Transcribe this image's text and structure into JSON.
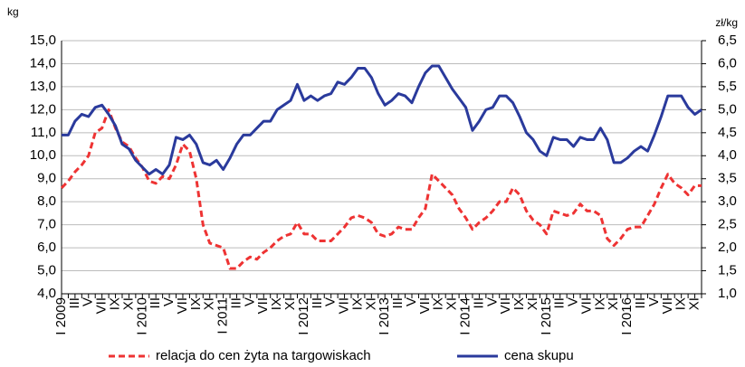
{
  "chart_data": {
    "type": "line",
    "y_label": "kg",
    "y2_label": "zł/kg",
    "categories": [
      "I 2009",
      null,
      "III",
      null,
      "V",
      null,
      "VII",
      null,
      "IX",
      null,
      "XI",
      null,
      "I 2010",
      null,
      "III",
      null,
      "V",
      null,
      "VII",
      null,
      "IX",
      null,
      "XI",
      null,
      "I 2011",
      null,
      "III",
      null,
      "V",
      null,
      "VII",
      null,
      "IX",
      null,
      "XI",
      null,
      "I 2012",
      null,
      "III",
      null,
      "V",
      null,
      "VII",
      null,
      "IX",
      null,
      "XI",
      null,
      "I 2013",
      null,
      "III",
      null,
      "V",
      null,
      "VII",
      null,
      "IX",
      null,
      "XI",
      null,
      "I 2014",
      null,
      "III",
      null,
      "V",
      null,
      "VII",
      null,
      "IX",
      null,
      "XI",
      null,
      "I 2015",
      null,
      "III",
      null,
      "V",
      null,
      "VII",
      null,
      "IX",
      null,
      "XI",
      null,
      "I 2016",
      null,
      "III",
      null,
      "V",
      null,
      "VII",
      null,
      "IX",
      null,
      "XI",
      null
    ],
    "series": [
      {
        "name": "relacja do cen żyta na targowiskach",
        "color": "#ee3333",
        "dashed": true,
        "values": [
          8.6,
          8.9,
          9.3,
          9.6,
          10.0,
          11.0,
          11.2,
          12.0,
          11.2,
          10.6,
          10.4,
          9.9,
          9.5,
          8.9,
          8.8,
          9.1,
          9.0,
          9.6,
          10.5,
          10.2,
          9.0,
          7.0,
          6.2,
          6.1,
          6.0,
          5.1,
          5.1,
          5.4,
          5.6,
          5.5,
          5.8,
          6.0,
          6.3,
          6.5,
          6.6,
          7.1,
          6.6,
          6.6,
          6.3,
          6.3,
          6.3,
          6.6,
          6.9,
          7.3,
          7.4,
          7.3,
          7.1,
          6.6,
          6.5,
          6.6,
          6.9,
          6.8,
          6.8,
          7.3,
          7.7,
          9.2,
          8.9,
          8.6,
          8.3,
          7.7,
          7.3,
          6.8,
          7.1,
          7.3,
          7.6,
          8.0,
          8.0,
          8.6,
          8.3,
          7.6,
          7.2,
          7.0,
          6.6,
          7.6,
          7.5,
          7.4,
          7.5,
          7.9,
          7.6,
          7.6,
          7.4,
          6.4,
          6.1,
          6.4,
          6.8,
          6.9,
          6.9,
          7.4,
          7.9,
          8.6,
          9.2,
          8.8,
          8.6,
          8.3,
          8.7,
          8.7
        ]
      },
      {
        "name": "cena skupu",
        "color": "#2a3a9c",
        "axis": "y2",
        "values": [
          4.45,
          4.45,
          4.75,
          4.9,
          4.85,
          5.05,
          5.1,
          4.9,
          4.65,
          4.25,
          4.15,
          3.9,
          3.75,
          3.6,
          3.7,
          3.6,
          3.8,
          4.4,
          4.35,
          4.45,
          4.25,
          3.85,
          3.8,
          3.9,
          3.7,
          3.95,
          4.25,
          4.45,
          4.45,
          4.6,
          4.75,
          4.75,
          5.0,
          5.1,
          5.2,
          5.55,
          5.2,
          5.3,
          5.2,
          5.3,
          5.35,
          5.6,
          5.55,
          5.7,
          5.9,
          5.9,
          5.7,
          5.35,
          5.1,
          5.2,
          5.35,
          5.3,
          5.15,
          5.5,
          5.8,
          5.95,
          5.95,
          5.7,
          5.45,
          5.25,
          5.05,
          4.55,
          4.75,
          5.0,
          5.05,
          5.3,
          5.3,
          5.15,
          4.85,
          4.5,
          4.35,
          4.1,
          4.0,
          4.4,
          4.35,
          4.35,
          4.2,
          4.4,
          4.35,
          4.35,
          4.6,
          4.35,
          3.85,
          3.85,
          3.95,
          4.1,
          4.2,
          4.1,
          4.45,
          4.85,
          5.3,
          5.3,
          5.3,
          5.05,
          4.9,
          5.0
        ]
      }
    ],
    "ylim": [
      4.0,
      15.0
    ],
    "yticks": [
      {
        "value": 4.0,
        "label": "4,0"
      },
      {
        "value": 5.0,
        "label": "5,0"
      },
      {
        "value": 6.0,
        "label": "6,0"
      },
      {
        "value": 7.0,
        "label": "7,0"
      },
      {
        "value": 8.0,
        "label": "8,0"
      },
      {
        "value": 9.0,
        "label": "9,0"
      },
      {
        "value": 10.0,
        "label": "10,0"
      },
      {
        "value": 11.0,
        "label": "11,0"
      },
      {
        "value": 12.0,
        "label": "12,0"
      },
      {
        "value": 13.0,
        "label": "13,0"
      },
      {
        "value": 14.0,
        "label": "14,0"
      },
      {
        "value": 15.0,
        "label": "15,0"
      }
    ],
    "y2lim": [
      1.0,
      6.5
    ],
    "y2ticks": [
      {
        "value": 1.0,
        "label": "1,0"
      },
      {
        "value": 1.5,
        "label": "1,5"
      },
      {
        "value": 2.0,
        "label": "2,0"
      },
      {
        "value": 2.5,
        "label": "2,5"
      },
      {
        "value": 3.0,
        "label": "3,0"
      },
      {
        "value": 3.5,
        "label": "3,5"
      },
      {
        "value": 4.0,
        "label": "4,0"
      },
      {
        "value": 4.5,
        "label": "4,5"
      },
      {
        "value": 5.0,
        "label": "5,0"
      },
      {
        "value": 5.5,
        "label": "5,5"
      },
      {
        "value": 6.0,
        "label": "6,0"
      },
      {
        "value": 6.5,
        "label": "6,5"
      }
    ],
    "grid": true,
    "legend": "bottom"
  }
}
